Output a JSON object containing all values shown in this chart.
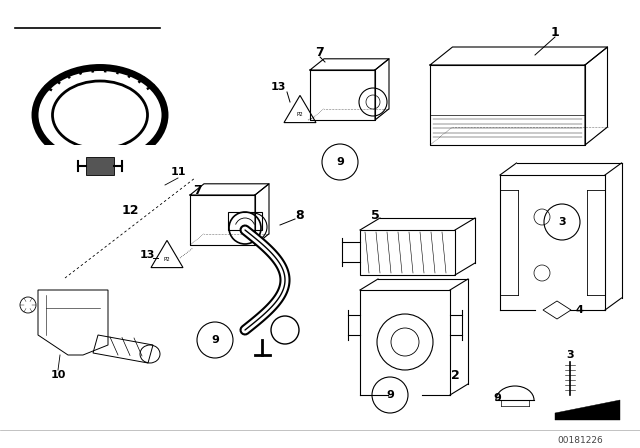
{
  "bg_color": "#ffffff",
  "fig_width": 6.4,
  "fig_height": 4.48,
  "dpi": 100,
  "watermark": "00181226",
  "lc": "#000000"
}
